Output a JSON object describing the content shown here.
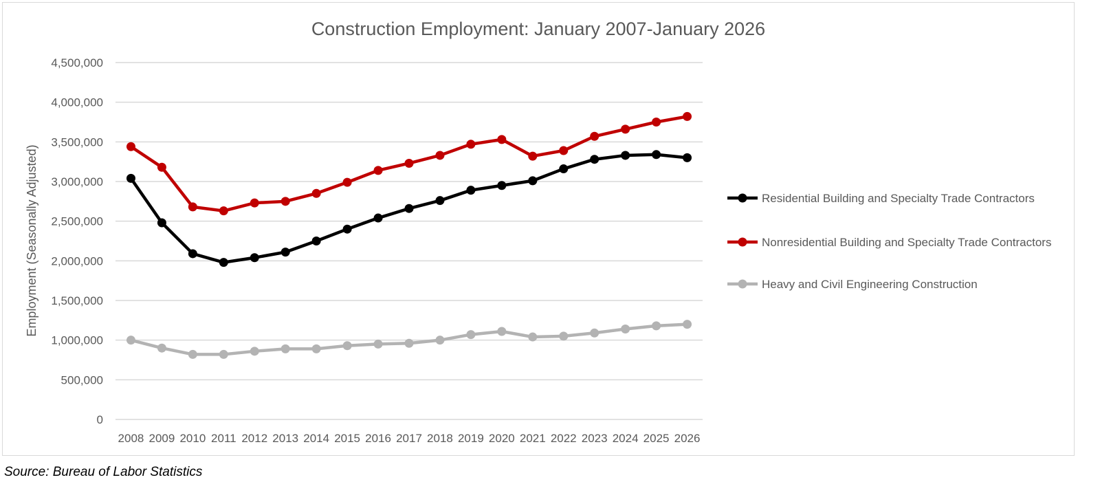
{
  "chart_data": {
    "type": "line",
    "title": "Construction Employment: January 2007-January 2026",
    "xlabel": "",
    "ylabel": "Employment (Seasonally Adjusted)",
    "ylim": [
      0,
      4500000
    ],
    "yticks": [
      "0",
      "500,000",
      "1,000,000",
      "1,500,000",
      "2,000,000",
      "2,500,000",
      "3,000,000",
      "3,500,000",
      "4,000,000",
      "4,500,000"
    ],
    "grid": true,
    "legend_position": "right",
    "categories": [
      "2008",
      "2009",
      "2010",
      "2011",
      "2012",
      "2013",
      "2014",
      "2015",
      "2016",
      "2017",
      "2018",
      "2019",
      "2020",
      "2021",
      "2022",
      "2023",
      "2024",
      "2025",
      "2026"
    ],
    "series": [
      {
        "name": "Residential Building and Specialty Trade Contractors",
        "color": "#000000",
        "values": [
          3040000,
          2480000,
          2090000,
          1980000,
          2040000,
          2110000,
          2250000,
          2400000,
          2540000,
          2660000,
          2760000,
          2890000,
          2950000,
          3010000,
          3160000,
          3280000,
          3330000,
          3340000,
          3300000
        ]
      },
      {
        "name": "Nonresidential Building and Specialty Trade Contractors",
        "color": "#c00000",
        "values": [
          3440000,
          3180000,
          2680000,
          2630000,
          2730000,
          2750000,
          2850000,
          2990000,
          3140000,
          3230000,
          3330000,
          3470000,
          3530000,
          3320000,
          3390000,
          3570000,
          3660000,
          3750000,
          3820000
        ]
      },
      {
        "name": "Heavy and Civil Engineering Construction",
        "color": "#b3b3b3",
        "values": [
          1000000,
          900000,
          820000,
          820000,
          860000,
          890000,
          890000,
          930000,
          950000,
          960000,
          1000000,
          1070000,
          1110000,
          1040000,
          1050000,
          1090000,
          1140000,
          1180000,
          1200000
        ]
      }
    ]
  },
  "source": "Source: Bureau of Labor Statistics"
}
